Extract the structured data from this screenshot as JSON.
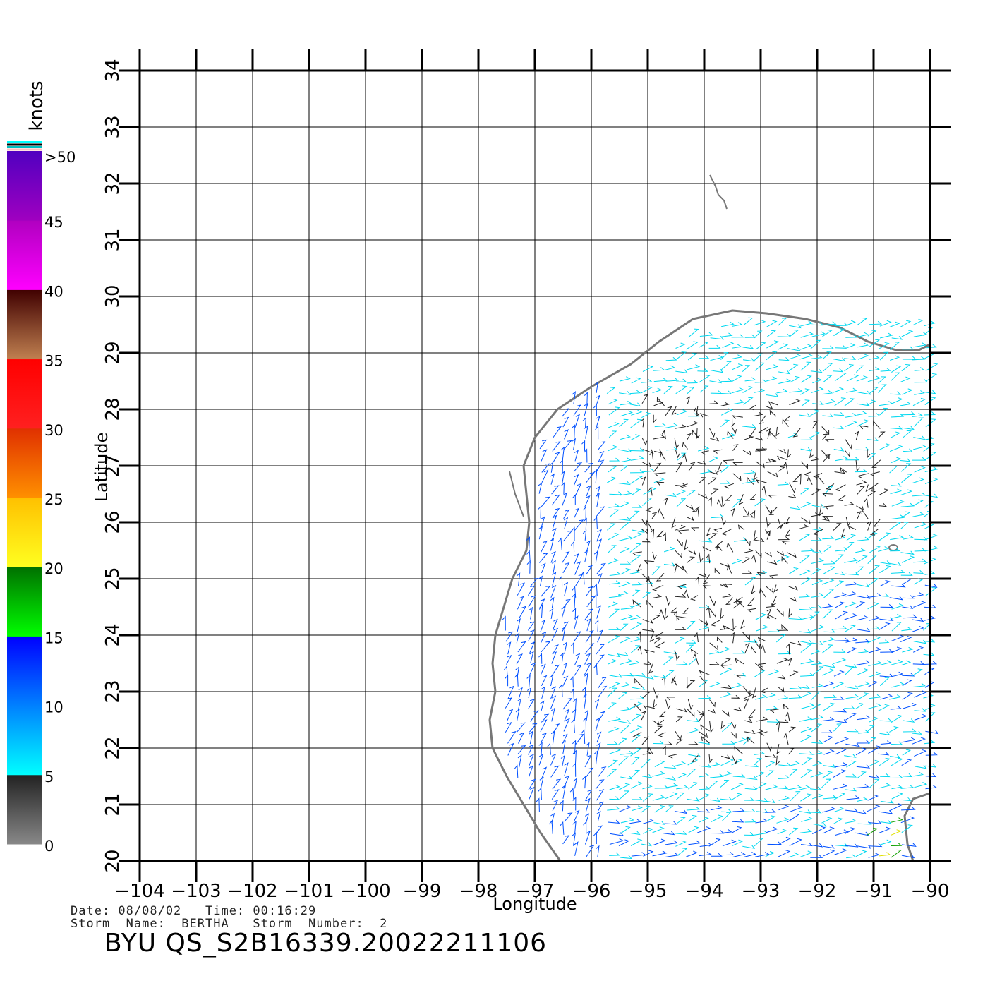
{
  "map": {
    "xlabel": "Longitude",
    "ylabel": "Latitude",
    "lon_ticks": [
      "-104",
      "-103",
      "-102",
      "-101",
      "-100",
      "-99",
      "-98",
      "-97",
      "-96",
      "-95",
      "-94",
      "-93",
      "-92",
      "-91",
      "-90"
    ],
    "lat_ticks": [
      "20",
      "21",
      "22",
      "23",
      "24",
      "25",
      "26",
      "27",
      "28",
      "29",
      "30",
      "31",
      "32",
      "33",
      "34"
    ],
    "lon_range": [
      -104,
      -90
    ],
    "lat_range": [
      20,
      34
    ],
    "grid": true,
    "coast_color": "#777777",
    "frame_color": "#000000"
  },
  "colorbar": {
    "unit": "knots",
    "labels": [
      "0",
      "5",
      "10",
      "15",
      "20",
      "25",
      "30",
      "35",
      "40",
      "45",
      ">50"
    ],
    "segments": [
      {
        "from": 0,
        "to": 5,
        "top": "#222222",
        "bottom": "#888888"
      },
      {
        "from": 5,
        "to": 10,
        "top": "#0080ff",
        "bottom": "#00ffff"
      },
      {
        "from": 10,
        "to": 15,
        "top": "#0000ff",
        "bottom": "#0080ff"
      },
      {
        "from": 15,
        "to": 20,
        "top": "#007000",
        "bottom": "#00ff00"
      },
      {
        "from": 20,
        "to": 25,
        "top": "#ffc000",
        "bottom": "#ffff20"
      },
      {
        "from": 25,
        "to": 30,
        "top": "#e03000",
        "bottom": "#ff9000"
      },
      {
        "from": 30,
        "to": 35,
        "top": "#ff0000",
        "bottom": "#ff2020"
      },
      {
        "from": 35,
        "to": 40,
        "top": "#400000",
        "bottom": "#c08050"
      },
      {
        "from": 40,
        "to": 45,
        "top": "#b000c0",
        "bottom": "#ff00ff"
      },
      {
        "from": 45,
        "to": 50,
        "top": "#5000c0",
        "bottom": "#a000c0"
      }
    ]
  },
  "info": {
    "line1": "Date: 08/08/02   Time: 00:16:29",
    "line2": "Storm  Name:  BERTHA   Storm  Number:  2",
    "product": "BYU  QS_S2B16339.20022211106"
  },
  "wind_colors": {
    "calm": "#222222",
    "light": "#00d8f0",
    "moderate": "#0050ff",
    "fresh": "#10a000",
    "strong": "#e0e000"
  }
}
